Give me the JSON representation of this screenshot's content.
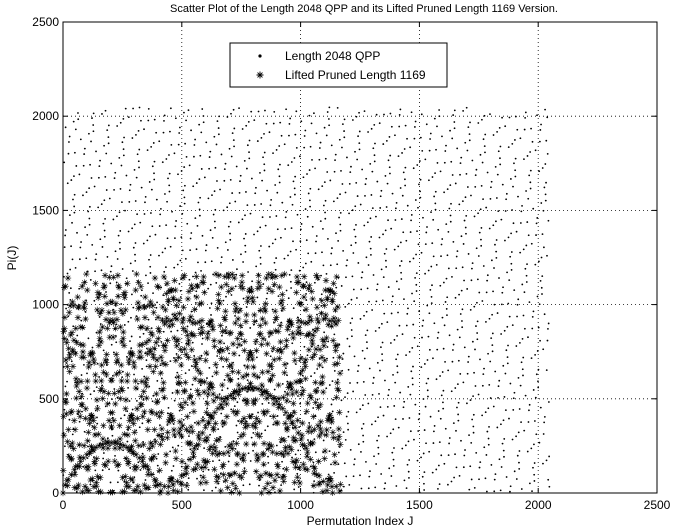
{
  "chart_data": {
    "type": "scatter",
    "title": "Scatter Plot of the Length 2048 QPP and its Lifted Pruned Length 1169 Version.",
    "xlabel": "Permutation Index J",
    "ylabel": "Pi(J)",
    "xlim": [
      0,
      2500
    ],
    "ylim": [
      0,
      2500
    ],
    "xticks": [
      0,
      500,
      1000,
      1500,
      2000,
      2500
    ],
    "yticks": [
      0,
      500,
      1000,
      1500,
      2000,
      2500
    ],
    "grid": true,
    "legend_position": "top-center",
    "series": [
      {
        "name": "Length 2048 QPP",
        "marker": "dot",
        "color": "#000000",
        "length": 2048,
        "x_range": [
          0,
          2047
        ],
        "y_range": [
          0,
          2047
        ],
        "description_values": "QPP permutation points filling square [0,2047]x[0,2047] in a regular lattice"
      },
      {
        "name": "Lifted Pruned Length 1169",
        "marker": "asterisk",
        "color": "#000000",
        "length": 1169,
        "x_range": [
          0,
          1168
        ],
        "y_range": [
          0,
          1168
        ],
        "description_values": "Pruned permutation points filling square [0,1168]x[0,1168]"
      }
    ]
  }
}
